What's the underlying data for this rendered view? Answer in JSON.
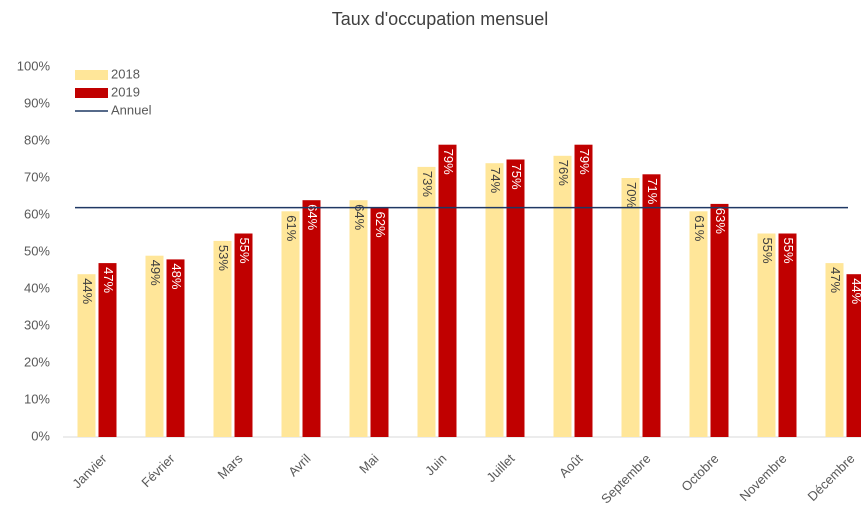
{
  "chart_data": {
    "type": "bar",
    "title": "Taux d'occupation mensuel",
    "categories": [
      "Janvier",
      "Février",
      "Mars",
      "Avril",
      "Mai",
      "Juin",
      "Juillet",
      "Août",
      "Septembre",
      "Octobre",
      "Novembre",
      "Décembre"
    ],
    "series": [
      {
        "name": "2018",
        "color": "#ffe699",
        "values": [
          44,
          49,
          53,
          61,
          64,
          73,
          74,
          76,
          70,
          61,
          55,
          47
        ],
        "value_labels": [
          "44%",
          "49%",
          "53%",
          "61%",
          "64%",
          "73%",
          "74%",
          "76%",
          "70%",
          "61%",
          "55%",
          "47%"
        ]
      },
      {
        "name": "2019",
        "color": "#c00000",
        "values": [
          47,
          48,
          55,
          64,
          62,
          79,
          75,
          79,
          71,
          63,
          55,
          44
        ],
        "value_labels": [
          "47%",
          "48%",
          "55%",
          "64%",
          "62%",
          "79%",
          "75%",
          "79%",
          "71%",
          "63%",
          "55%",
          "44%"
        ]
      },
      {
        "name": "Annuel",
        "type": "line",
        "color": "#1f3864",
        "values": [
          62,
          62,
          62,
          62,
          62,
          62,
          62,
          62,
          62,
          62,
          62,
          62
        ]
      }
    ],
    "ylim": [
      0,
      100
    ],
    "yticks": [
      {
        "value": 0,
        "label": "0%"
      },
      {
        "value": 10,
        "label": "10%"
      },
      {
        "value": 20,
        "label": "20%"
      },
      {
        "value": 30,
        "label": "30%"
      },
      {
        "value": 40,
        "label": "40%"
      },
      {
        "value": 50,
        "label": "50%"
      },
      {
        "value": 60,
        "label": "60%"
      },
      {
        "value": 70,
        "label": "70%"
      },
      {
        "value": 80,
        "label": "80%"
      },
      {
        "value": 90,
        "label": "90%"
      },
      {
        "value": 100,
        "label": "100%"
      }
    ],
    "legend": "top-left",
    "grid": false
  }
}
